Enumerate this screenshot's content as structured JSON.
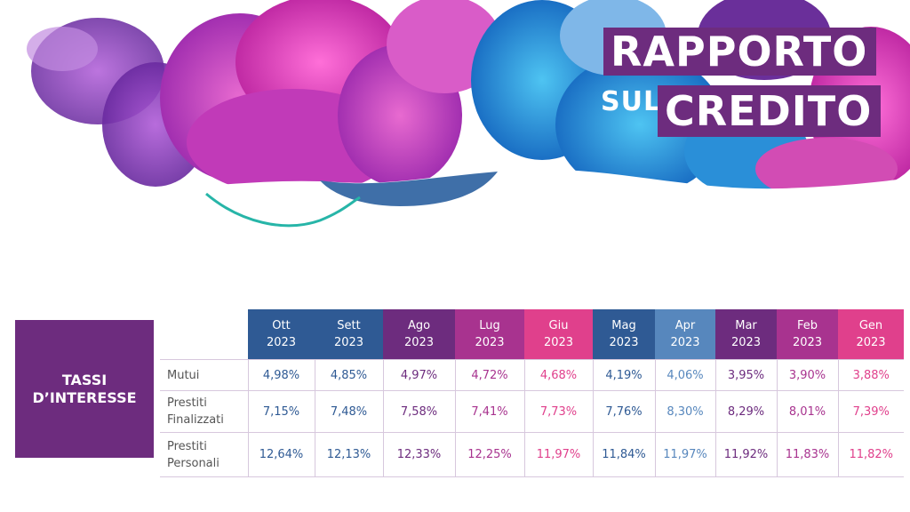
{
  "header": {
    "title_line1": "RAPPORTO",
    "title_prefix": "SUL",
    "title_line2": "CREDITO"
  },
  "side_label": {
    "line1": "TASSI",
    "line2": "D’INTERESSE"
  },
  "table": {
    "months": [
      {
        "name": "Ott",
        "year": "2023",
        "color": "#2f5a94"
      },
      {
        "name": "Sett",
        "year": "2023",
        "color": "#2f5a94"
      },
      {
        "name": "Ago",
        "year": "2023",
        "color": "#6d2c7e"
      },
      {
        "name": "Lug",
        "year": "2023",
        "color": "#a8338f"
      },
      {
        "name": "Giu",
        "year": "2023",
        "color": "#e0408c"
      },
      {
        "name": "Mag",
        "year": "2023",
        "color": "#2f5a94"
      },
      {
        "name": "Apr",
        "year": "2023",
        "color": "#5787bd"
      },
      {
        "name": "Mar",
        "year": "2023",
        "color": "#6d2c7e"
      },
      {
        "name": "Feb",
        "year": "2023",
        "color": "#a8338f"
      },
      {
        "name": "Gen",
        "year": "2023",
        "color": "#e0408c"
      }
    ],
    "rows": [
      {
        "label_l1": "Mutui",
        "label_l2": "",
        "values": [
          "4,98%",
          "4,85%",
          "4,97%",
          "4,72%",
          "4,68%",
          "4,19%",
          "4,06%",
          "3,95%",
          "3,90%",
          "3,88%"
        ]
      },
      {
        "label_l1": "Prestiti",
        "label_l2": "Finalizzati",
        "values": [
          "7,15%",
          "7,48%",
          "7,58%",
          "7,41%",
          "7,73%",
          "7,76%",
          "8,30%",
          "8,29%",
          "8,01%",
          "7,39%"
        ]
      },
      {
        "label_l1": "Prestiti",
        "label_l2": "Personali",
        "values": [
          "12,64%",
          "12,13%",
          "12,33%",
          "12,25%",
          "11,97%",
          "11,84%",
          "11,97%",
          "11,92%",
          "11,83%",
          "11,82%"
        ]
      }
    ]
  }
}
